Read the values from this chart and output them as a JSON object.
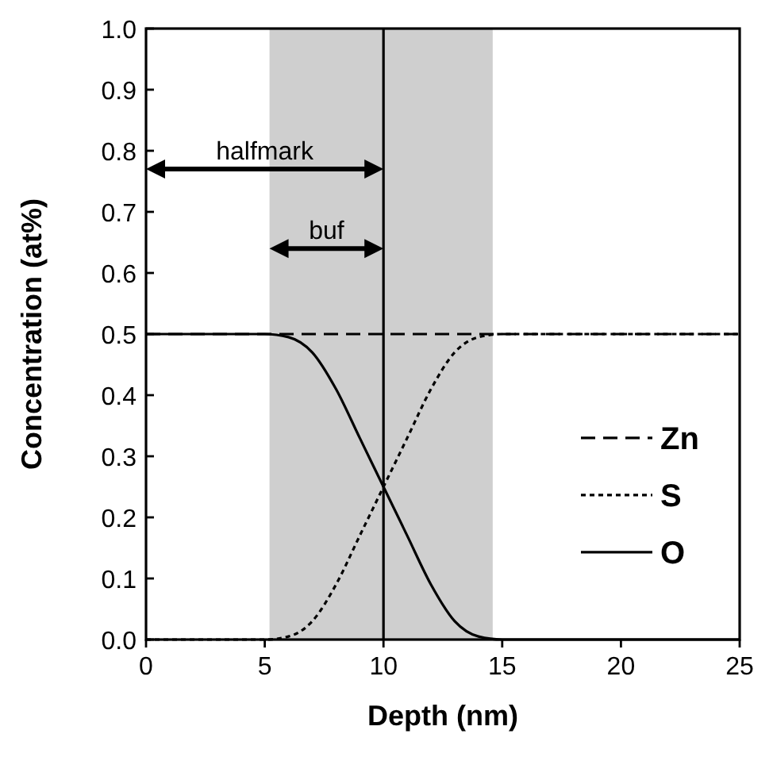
{
  "chart_data": {
    "type": "line",
    "xlabel": "Depth (nm)",
    "ylabel": "Concentration (at%)",
    "xlim": [
      0,
      25
    ],
    "ylim": [
      0,
      1
    ],
    "xticks": [
      0,
      5,
      10,
      15,
      20,
      25
    ],
    "yticks": [
      {
        "value": 0,
        "label": "0.0"
      },
      {
        "value": 0.1,
        "label": "0.1"
      },
      {
        "value": 0.2,
        "label": "0.2"
      },
      {
        "value": 0.3,
        "label": "0.3"
      },
      {
        "value": 0.4,
        "label": "0.4"
      },
      {
        "value": 0.5,
        "label": "0.5"
      },
      {
        "value": 0.6,
        "label": "0.6"
      },
      {
        "value": 0.7,
        "label": "0.7"
      },
      {
        "value": 0.8,
        "label": "0.8"
      },
      {
        "value": 0.9,
        "label": "0.9"
      },
      {
        "value": 1,
        "label": "1.0"
      }
    ],
    "x": [
      0,
      5,
      6,
      7,
      8,
      9,
      10,
      11,
      12,
      13,
      14,
      15,
      25
    ],
    "series": [
      {
        "name": "Zn",
        "color": "#000000",
        "line_style": "dashed",
        "values": [
          0.5,
          0.5,
          0.5,
          0.5,
          0.5,
          0.5,
          0.5,
          0.5,
          0.5,
          0.5,
          0.5,
          0.5,
          0.5
        ]
      },
      {
        "name": "S",
        "color": "#000000",
        "line_style": "dotted",
        "values": [
          0,
          0,
          0.005,
          0.03,
          0.09,
          0.17,
          0.25,
          0.33,
          0.41,
          0.47,
          0.495,
          0.5,
          0.5
        ]
      },
      {
        "name": "O",
        "color": "#000000",
        "line_style": "solid",
        "values": [
          0.5,
          0.5,
          0.495,
          0.47,
          0.41,
          0.33,
          0.25,
          0.17,
          0.09,
          0.03,
          0.005,
          0,
          0
        ]
      }
    ],
    "bands": [
      {
        "axis": "x",
        "from": 5.2,
        "to": 14.6,
        "color": "#cfcfcf"
      }
    ],
    "ref_lines": [
      {
        "axis": "x",
        "value": 10,
        "color": "#000000"
      }
    ],
    "annotations": [
      "halfmark",
      "buf"
    ],
    "legend": "bottom right",
    "grid": false
  }
}
